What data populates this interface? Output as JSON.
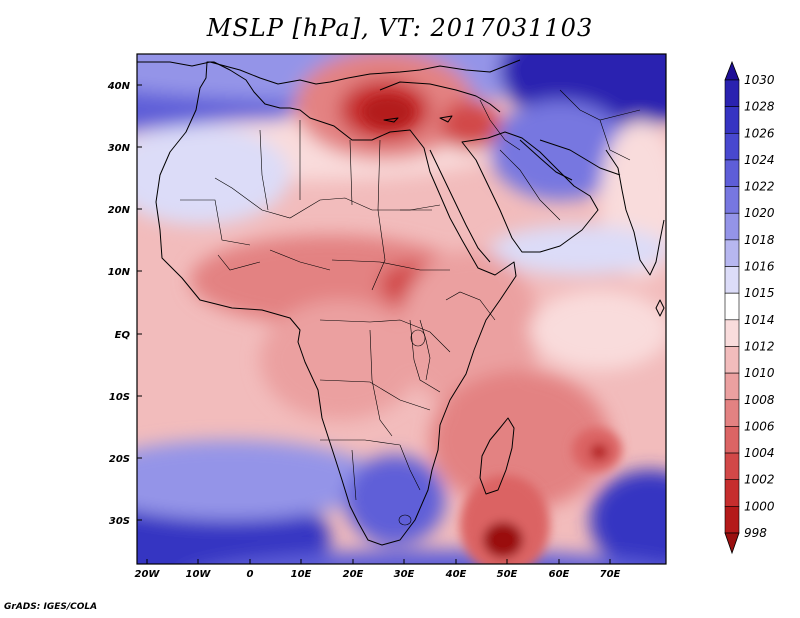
{
  "title": "MSLP [hPa], VT: 2017031103",
  "credit": "GrADS: IGES/COLA",
  "chart_data": {
    "type": "heatmap",
    "variable": "MSLP",
    "units": "hPa",
    "valid_time": "2017031103",
    "xlim": [
      -23,
      80
    ],
    "ylim": [
      -37,
      45
    ],
    "x_ticks": [
      {
        "value": -20,
        "label": "20W"
      },
      {
        "value": -10,
        "label": "10W"
      },
      {
        "value": 0,
        "label": "0"
      },
      {
        "value": 10,
        "label": "10E"
      },
      {
        "value": 20,
        "label": "20E"
      },
      {
        "value": 30,
        "label": "30E"
      },
      {
        "value": 40,
        "label": "40E"
      },
      {
        "value": 50,
        "label": "50E"
      },
      {
        "value": 60,
        "label": "60E"
      },
      {
        "value": 70,
        "label": "70E"
      }
    ],
    "y_ticks": [
      {
        "value": 40,
        "label": "40N"
      },
      {
        "value": 30,
        "label": "30N"
      },
      {
        "value": 20,
        "label": "20N"
      },
      {
        "value": 10,
        "label": "10N"
      },
      {
        "value": 0,
        "label": "EQ"
      },
      {
        "value": -10,
        "label": "10S"
      },
      {
        "value": -20,
        "label": "20S"
      },
      {
        "value": -30,
        "label": "30S"
      }
    ],
    "colorbar": {
      "levels": [
        1030,
        1028,
        1026,
        1024,
        1022,
        1020,
        1018,
        1016,
        1015,
        1014,
        1012,
        1010,
        1008,
        1006,
        1004,
        1002,
        1000,
        998
      ],
      "colors": [
        "#1e0f96",
        "#2a22b0",
        "#3634c2",
        "#4848cf",
        "#5e5ed8",
        "#7777e0",
        "#9494e8",
        "#b7b7f0",
        "#dcdcf8",
        "#ffffff",
        "#f9dcdc",
        "#f2bcbc",
        "#eba0a0",
        "#e38282",
        "#db6464",
        "#d24848",
        "#c62e2e",
        "#b41a1a",
        "#9a1010"
      ]
    },
    "features": [
      {
        "name": "Eastern Mediterranean low",
        "lon": 26,
        "lat": 37,
        "value": 1000
      },
      {
        "name": "Mozambique Channel low",
        "lon": 49,
        "lat": -34,
        "value": 998
      },
      {
        "name": "Mascarene low",
        "lon": 68,
        "lat": -19,
        "value": 1002
      },
      {
        "name": "Central Asian high",
        "lon": 68,
        "lat": 42,
        "value": 1030
      },
      {
        "name": "South Atlantic high",
        "lon": -12,
        "lat": -32,
        "value": 1026
      },
      {
        "name": "Southern Africa high",
        "lon": 27,
        "lat": -27,
        "value": 1022
      }
    ]
  }
}
